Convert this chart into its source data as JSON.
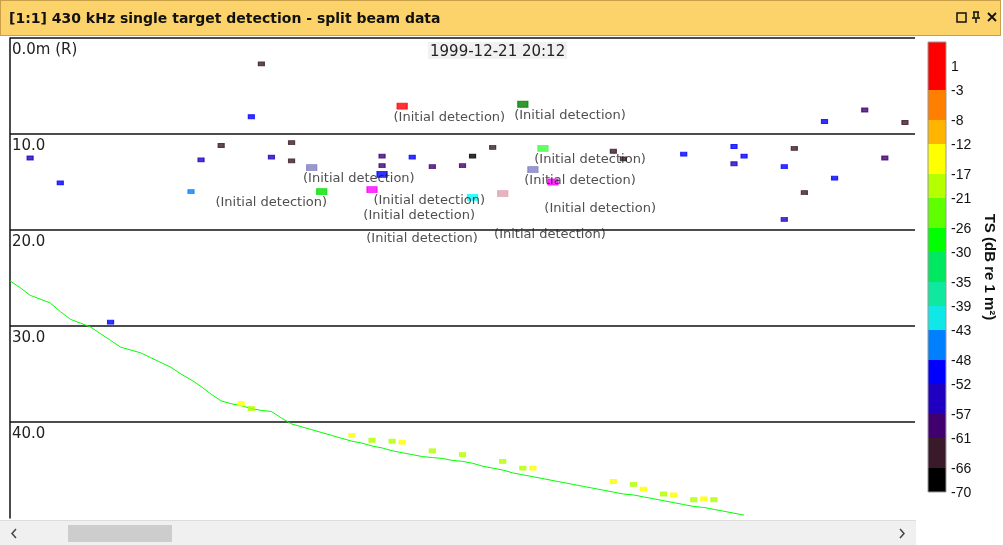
{
  "chart_data": {
    "type": "scatter",
    "title": "[1:1] 430 kHz single target detection - split beam data",
    "clabel": "TS (dB re 1 m²)",
    "annotations": [
      "1999-12-21 20:12"
    ],
    "categories": [
      null,
      null,
      null,
      null,
      null,
      null,
      null,
      null,
      null,
      null,
      null,
      null,
      null,
      null,
      null,
      null,
      null,
      null,
      null,
      null,
      null,
      null,
      null,
      null,
      null,
      null,
      null,
      null,
      null,
      null,
      null,
      null,
      null,
      null,
      null,
      null,
      null,
      null,
      null,
      null,
      null,
      null,
      null,
      null,
      null,
      null,
      null,
      null,
      null,
      null,
      null,
      null,
      null,
      null,
      null,
      null,
      null,
      null,
      null,
      null,
      null,
      null,
      null,
      null,
      null,
      null,
      null,
      null,
      null,
      null,
      null,
      null,
      null,
      null,
      null,
      null,
      null,
      null,
      null,
      null,
      null,
      null,
      null,
      null,
      null,
      null,
      null,
      null,
      null,
      null,
      null
    ],
    "ylim": [
      50,
      0
    ],
    "yticks": [
      {
        "value": 0,
        "label": "0.0m (R)"
      },
      {
        "value": 10,
        "label": "10.0"
      },
      {
        "value": 20,
        "label": "20.0"
      },
      {
        "value": 30,
        "label": "30.0"
      },
      {
        "value": 40,
        "label": "40.0"
      }
    ],
    "tick_labels": "y",
    "grid": "y",
    "marker": "square",
    "clim": [
      -70,
      5
    ],
    "cticks": [
      1,
      -3,
      -8,
      -12,
      -17,
      -21,
      -26,
      -30,
      -35,
      -39,
      -43,
      -48,
      -52,
      -57,
      -61,
      -66,
      -70
    ],
    "series": [
      {
        "type": "line",
        "color": "#00ff00",
        "marker": "none",
        "values": [
          25.3,
          26.0,
          26.8,
          27.2,
          27.6,
          28.5,
          29.3,
          29.7,
          30.1,
          30.8,
          31.5,
          32.2,
          32.5,
          32.8,
          33.3,
          33.8,
          34.3,
          35.0,
          35.6,
          36.3,
          37.1,
          37.8,
          38.1,
          38.3,
          38.6,
          38.8,
          38.9,
          39.6,
          40.2,
          40.5,
          40.8,
          41.1,
          41.4,
          41.7,
          42.0,
          42.2,
          42.5,
          42.7,
          43.0,
          43.2,
          43.4,
          43.6,
          43.7,
          43.8,
          44.0,
          44.1,
          44.3,
          44.6,
          44.8,
          45.0,
          45.3,
          45.5,
          45.7,
          45.9,
          46.1,
          46.3,
          46.5,
          46.7,
          46.9,
          47.1,
          47.3,
          47.5,
          47.6,
          47.8,
          48.0,
          48.2,
          48.4,
          48.6,
          48.8,
          48.9,
          49.1,
          49.3,
          49.5,
          49.7,
          null,
          null,
          null,
          null,
          null,
          null,
          null,
          null,
          null,
          null,
          null,
          null,
          null,
          null,
          null,
          null,
          null
        ]
      },
      {
        "type": "scatter",
        "values": [
          null,
          null,
          12.5,
          null,
          null,
          15.1,
          null,
          null,
          null,
          null,
          29.6,
          null,
          null,
          null,
          null,
          null,
          null,
          null,
          16.0,
          12.7,
          null,
          11.2,
          null,
          null,
          8.2,
          2.7,
          12.4,
          null,
          10.9,
          null,
          null,
          null,
          null,
          null,
          null,
          null,
          null,
          12.3,
          null,
          null,
          12.4,
          null,
          13.4,
          null,
          null,
          13.3,
          12.3,
          null,
          11.4,
          null,
          null,
          null,
          null,
          null,
          null,
          null,
          null,
          null,
          null,
          null,
          11.8,
          12.6,
          null,
          null,
          null,
          null,
          null,
          12.1,
          null,
          null,
          null,
          null,
          11.3,
          12.3,
          null,
          null,
          null,
          13.4,
          11.5,
          16.1,
          null,
          8.7,
          14.6,
          null,
          null,
          7.5,
          null,
          12.5,
          null,
          8.8,
          null
        ],
        "colors": [
          null,
          null,
          "#2000c0",
          null,
          null,
          "#0000ff",
          null,
          null,
          null,
          null,
          "#0000ff",
          null,
          null,
          null,
          null,
          null,
          null,
          null,
          "#0080ff",
          "#2000c0",
          null,
          "#3a1a2a",
          null,
          null,
          "#0000ff",
          "#3a1a2a",
          "#2000c0",
          null,
          "#3a1a2a",
          null,
          null,
          null,
          null,
          null,
          null,
          null,
          null,
          "#400070",
          null,
          null,
          "#0000ff",
          null,
          "#400070",
          null,
          null,
          "#400070",
          "#000000",
          null,
          "#3a1a2a",
          null,
          null,
          null,
          null,
          null,
          null,
          null,
          null,
          null,
          null,
          null,
          "#3a1a2a",
          "#3a1a2a",
          null,
          null,
          null,
          null,
          null,
          "#0000ff",
          null,
          null,
          null,
          null,
          "#0000ff",
          "#0000ff",
          null,
          null,
          null,
          "#0000ff",
          "#3a1a2a",
          "#3a1a2a",
          null,
          "#0000ff",
          "#0000ff",
          null,
          null,
          "#400070",
          null,
          "#400070",
          null,
          "#3a1a2a",
          null
        ],
        "cvalues": [
          null,
          null,
          -55,
          null,
          null,
          -50,
          null,
          null,
          null,
          null,
          -50,
          null,
          null,
          null,
          null,
          null,
          null,
          null,
          -45,
          -55,
          null,
          -64,
          null,
          null,
          -50,
          -64,
          -55,
          null,
          -64,
          null,
          null,
          null,
          null,
          null,
          null,
          null,
          null,
          -59,
          null,
          null,
          -50,
          null,
          -59,
          null,
          null,
          -59,
          -68,
          null,
          -64,
          null,
          null,
          null,
          null,
          null,
          null,
          null,
          null,
          null,
          null,
          null,
          -64,
          -64,
          null,
          null,
          null,
          null,
          null,
          -50,
          null,
          null,
          null,
          null,
          -50,
          -50,
          null,
          null,
          null,
          -50,
          -64,
          -64,
          null,
          -50,
          -50,
          null,
          null,
          -59,
          null,
          -59,
          null,
          -64,
          null
        ]
      },
      {
        "type": "scatter",
        "values": [
          null,
          null,
          null,
          null,
          null,
          null,
          null,
          null,
          null,
          null,
          null,
          null,
          null,
          null,
          null,
          null,
          null,
          null,
          null,
          null,
          null,
          null,
          null,
          38.1,
          38.6,
          null,
          null,
          null,
          12.8,
          null,
          null,
          null,
          null,
          null,
          41.4,
          null,
          41.9,
          13.3,
          42.0,
          42.1,
          null,
          null,
          43.0,
          null,
          null,
          43.4,
          null,
          null,
          null,
          44.1,
          null,
          44.8,
          44.8,
          null,
          null,
          null,
          null,
          null,
          null,
          null,
          46.2,
          null,
          46.5,
          47.0,
          null,
          47.5,
          47.6,
          null,
          48.1,
          48.0,
          48.1,
          null,
          13.1,
          null,
          null,
          null,
          null,
          18.9,
          null,
          null,
          null,
          null,
          null,
          null,
          null,
          null,
          null,
          null,
          null,
          null,
          null
        ],
        "colors": [
          null,
          null,
          null,
          null,
          null,
          null,
          null,
          null,
          null,
          null,
          null,
          null,
          null,
          null,
          null,
          null,
          null,
          null,
          null,
          null,
          null,
          null,
          null,
          "#ffff00",
          "#b4ff00",
          null,
          null,
          null,
          "#3a1a2a",
          null,
          null,
          null,
          null,
          null,
          "#ffff00",
          null,
          "#b4ff00",
          "#400070",
          "#b4ff00",
          "#ffff00",
          null,
          null,
          "#b4ff00",
          null,
          null,
          "#b4ff00",
          null,
          null,
          null,
          "#b4ff00",
          null,
          "#b4ff00",
          "#ffff00",
          null,
          null,
          null,
          null,
          null,
          null,
          null,
          "#ffff00",
          null,
          "#b4ff00",
          "#ffff00",
          null,
          "#b4ff00",
          "#ffff00",
          null,
          "#b4ff00",
          "#ffff00",
          "#b4ff00",
          null,
          "#2000c0",
          null,
          null,
          null,
          null,
          "#2000c0",
          null,
          null,
          null,
          null,
          null,
          null,
          null,
          null,
          null,
          null,
          null,
          null,
          null
        ],
        "cvalues": [
          null,
          null,
          null,
          null,
          null,
          null,
          null,
          null,
          null,
          null,
          null,
          null,
          null,
          null,
          null,
          null,
          null,
          null,
          null,
          null,
          null,
          null,
          null,
          -15,
          -19,
          null,
          null,
          null,
          -64,
          null,
          null,
          null,
          null,
          null,
          -15,
          null,
          -19,
          -59,
          -19,
          -15,
          null,
          null,
          -19,
          null,
          null,
          -19,
          null,
          null,
          null,
          -19,
          null,
          -19,
          -15,
          null,
          null,
          null,
          null,
          null,
          null,
          null,
          -15,
          null,
          -19,
          -15,
          null,
          -19,
          -15,
          null,
          -19,
          -15,
          -19,
          null,
          -55,
          null,
          null,
          null,
          null,
          -55,
          null,
          null,
          null,
          null,
          null,
          null,
          null,
          null,
          null,
          null,
          null,
          null,
          null
        ]
      },
      {
        "type": "scatter",
        "values": [
          null,
          null,
          null,
          null,
          null,
          null,
          null,
          null,
          null,
          null,
          null,
          null,
          null,
          null,
          null,
          null,
          null,
          null,
          null,
          null,
          null,
          null,
          null,
          null,
          null,
          null,
          null,
          null,
          null,
          null,
          13.5,
          16.0,
          null,
          null,
          null,
          null,
          15.8,
          14.2,
          null,
          7.1,
          null,
          null,
          null,
          null,
          null,
          null,
          16.6,
          null,
          null,
          16.2,
          null,
          6.9,
          13.7,
          11.5,
          15.0,
          null,
          null,
          null,
          null,
          null,
          null,
          null,
          null,
          null,
          null,
          null,
          null,
          null,
          null,
          null,
          null,
          null,
          null,
          null,
          null,
          null,
          null,
          null,
          null,
          null,
          null,
          null,
          null,
          null,
          null,
          null,
          null,
          null,
          null,
          null,
          null
        ],
        "colors": [
          null,
          null,
          null,
          null,
          null,
          null,
          null,
          null,
          null,
          null,
          null,
          null,
          null,
          null,
          null,
          null,
          null,
          null,
          null,
          null,
          null,
          null,
          null,
          null,
          null,
          null,
          null,
          null,
          null,
          null,
          "#8080c0",
          "#00e000",
          null,
          null,
          null,
          null,
          "#ff00ff",
          "#0000ff",
          null,
          "#ff0000",
          null,
          null,
          null,
          null,
          null,
          null,
          "#00ffff",
          null,
          null,
          "#e0a0b0",
          null,
          "#008000",
          "#8080c0",
          "#40ff40",
          "#ff00ff",
          null,
          null,
          null,
          null,
          null,
          null,
          null,
          null,
          null,
          null,
          null,
          null,
          null,
          null,
          null,
          null,
          null,
          null,
          null,
          null,
          null,
          null,
          null,
          null,
          null,
          null,
          null,
          null,
          null,
          null,
          null,
          null,
          null,
          null,
          null,
          null
        ],
        "value_labels": [
          null,
          null,
          null,
          null,
          null,
          null,
          null,
          null,
          null,
          null,
          null,
          null,
          null,
          null,
          null,
          null,
          null,
          null,
          null,
          null,
          null,
          null,
          null,
          null,
          null,
          null,
          null,
          null,
          null,
          null,
          "(Initial detection)",
          "(Initial detection)",
          null,
          null,
          null,
          null,
          "(Initial detection)",
          "(Initial detection)",
          null,
          "(Initial detection)",
          null,
          null,
          null,
          null,
          null,
          null,
          "(Initial detection)",
          null,
          null,
          "(Initial detection)",
          null,
          "(Initial detection)",
          "(Initial detection)",
          "(Initial detection)",
          "(Initial detection)",
          null,
          null,
          null,
          null,
          null,
          null,
          null,
          null,
          null,
          null,
          null,
          null,
          null,
          null,
          null,
          null,
          null,
          null,
          null,
          null,
          null,
          null,
          null,
          null,
          null,
          null,
          null,
          null,
          null,
          null,
          null,
          null,
          null,
          null,
          null,
          null
        ]
      }
    ]
  }
}
